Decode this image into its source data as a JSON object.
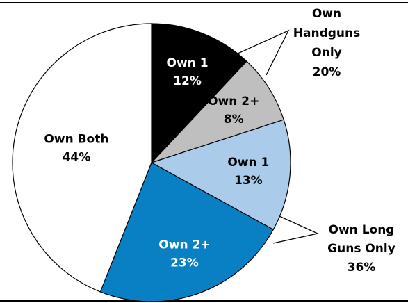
{
  "chart_data": {
    "type": "pie",
    "categories": [
      "Own 1",
      "Own 2+",
      "Own 1",
      "Own 2+",
      "Own Both"
    ],
    "values": [
      12,
      8,
      13,
      23,
      44
    ],
    "value_labels": [
      "12%",
      "8%",
      "13%",
      "23%",
      "44%"
    ],
    "colors": [
      "#000000",
      "#bfbfbf",
      "#aacbea",
      "#0a80c4",
      "#ffffff"
    ],
    "annotations": [
      {
        "lines": [
          "Own",
          "Handguns",
          "Only",
          "20%"
        ]
      },
      {
        "lines": [
          "Own Long",
          "Guns Only",
          "36%"
        ]
      }
    ]
  }
}
